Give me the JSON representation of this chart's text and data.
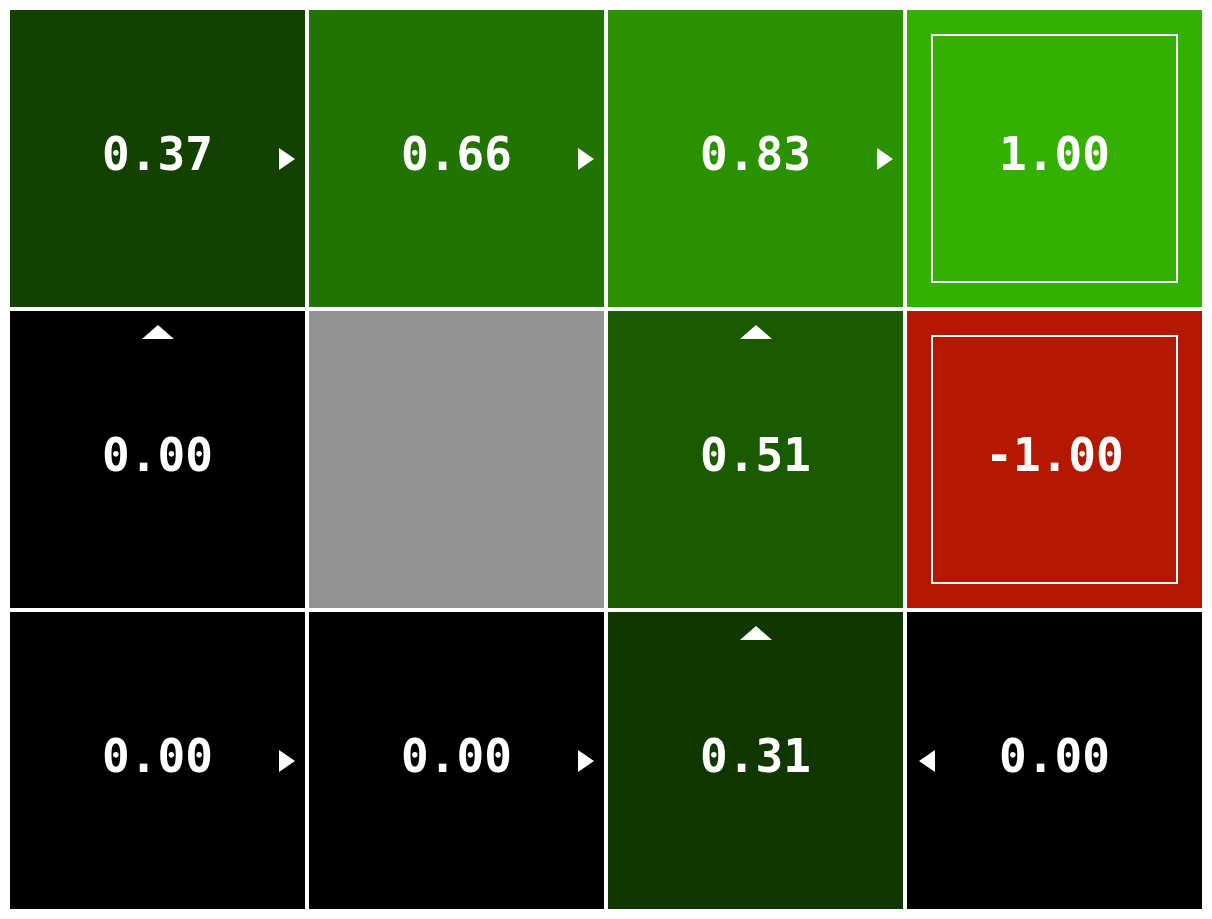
{
  "chart_data": {
    "type": "heatmap",
    "categories": [
      null,
      null,
      null,
      null
    ],
    "y_categories": [
      null,
      null,
      null
    ],
    "cells": [
      [
        0.37,
        0.66,
        0.83,
        1.0
      ],
      [
        0.0,
        null,
        0.51,
        -1.0
      ],
      [
        0.0,
        0.0,
        0.31,
        0.0
      ]
    ],
    "cell_labels": [
      [
        "0.37",
        "0.66",
        "0.83",
        "1.00"
      ],
      [
        "0.00",
        null,
        "0.51",
        "-1.00"
      ],
      [
        "0.00",
        "0.00",
        "0.31",
        "0.00"
      ]
    ]
  }
}
